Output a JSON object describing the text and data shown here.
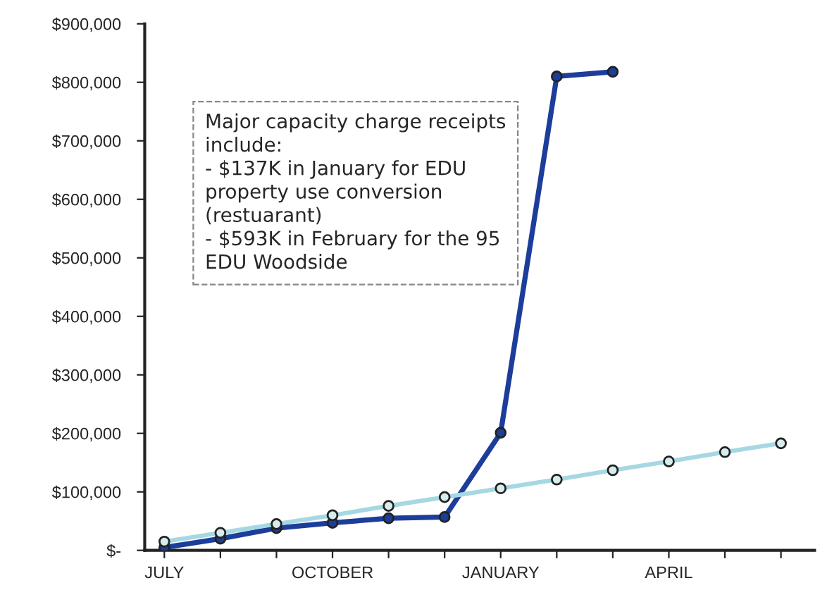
{
  "chart_data": {
    "type": "line",
    "categories": [
      "JULY",
      null,
      null,
      "OCTOBER",
      null,
      null,
      "JANUARY",
      null,
      null,
      "APRIL",
      null,
      null
    ],
    "series": [
      {
        "color": "#a6d8e3",
        "values": [
          15000,
          30000,
          45000,
          60000,
          76000,
          91000,
          106000,
          121000,
          137000,
          152000,
          168000,
          183000
        ]
      },
      {
        "color": "#1c3d9a",
        "values": [
          5000,
          20000,
          38000,
          47000,
          55000,
          57000,
          201000,
          810000,
          818000,
          null,
          null,
          null
        ]
      }
    ],
    "ylim": [
      0,
      900000
    ],
    "yticks": [
      {
        "value": 0,
        "label": "$-"
      },
      {
        "value": 100000,
        "label": "$100,000"
      },
      {
        "value": 200000,
        "label": "$200,000"
      },
      {
        "value": 300000,
        "label": "$300,000"
      },
      {
        "value": 400000,
        "label": "$400,000"
      },
      {
        "value": 500000,
        "label": "$500,000"
      },
      {
        "value": 600000,
        "label": "$600,000"
      },
      {
        "value": 700000,
        "label": "$700,000"
      },
      {
        "value": 800000,
        "label": "$800,000"
      },
      {
        "value": 900000,
        "label": "$900,000"
      }
    ],
    "marker": "circle",
    "line_style": "solid",
    "grid": false,
    "legend": false,
    "annotations": [
      "Major capacity charge receipts include:\n- $137K in January for EDU property use conversion (restuarant)\n- $593K in February for the 95 EDU Woodside"
    ]
  }
}
